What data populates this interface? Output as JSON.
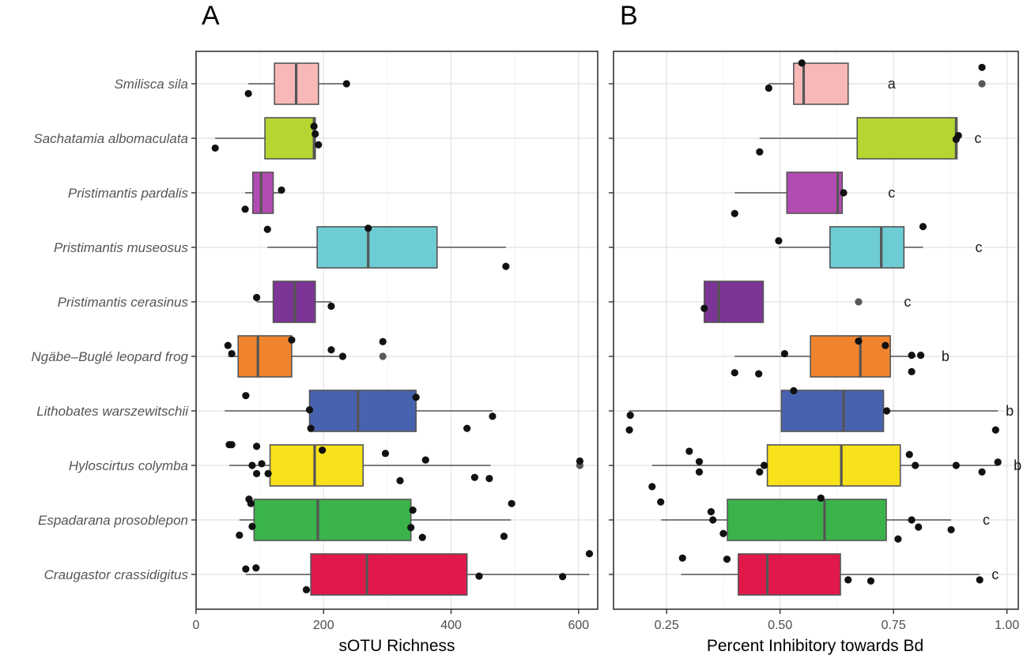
{
  "panel_labels": [
    "A",
    "B"
  ],
  "chart_data": [
    {
      "type": "boxplot",
      "panel": "A",
      "xlabel": "sOTU Richness",
      "xlim": [
        0,
        630
      ],
      "xticks": [
        0,
        200,
        400,
        600
      ],
      "xtick_labels": [
        "0",
        "200",
        "400",
        "600"
      ],
      "grid": true,
      "categories": [
        "Smilisca sila",
        "Sachatamia albomaculata",
        "Pristimantis pardalis",
        "Pristimantis museosus",
        "Pristimantis cerasinus",
        "Ngäbe–Buglé leopard frog",
        "Lithobates warszewitschii",
        "Hyloscirtus colymba",
        "Espadarana prosoblepon",
        "Craugastor crassidigitus"
      ],
      "colors": [
        "#F8B8B8",
        "#B5D630",
        "#B24BB2",
        "#6DCCD4",
        "#7C3596",
        "#F0842E",
        "#4763AF",
        "#F7E11B",
        "#3AB44A",
        "#E0194A"
      ],
      "boxes": [
        {
          "whisker_low": 82,
          "q1": 123,
          "median": 157,
          "q3": 192,
          "whisker_high": 236,
          "outliers": []
        },
        {
          "whisker_low": 30,
          "q1": 108,
          "median": 185,
          "q3": 187,
          "whisker_high": 187,
          "outliers": []
        },
        {
          "whisker_low": 77,
          "q1": 89,
          "median": 102,
          "q3": 121,
          "whisker_high": 134,
          "outliers": []
        },
        {
          "whisker_low": 112,
          "q1": 190,
          "median": 270,
          "q3": 378,
          "whisker_high": 486,
          "outliers": []
        },
        {
          "whisker_low": 95,
          "q1": 121,
          "median": 155,
          "q3": 187,
          "whisker_high": 212,
          "outliers": []
        },
        {
          "whisker_low": 50,
          "q1": 66,
          "median": 97,
          "q3": 150,
          "whisker_high": 230,
          "outliers": [
            293
          ]
        },
        {
          "whisker_low": 45,
          "q1": 178,
          "median": 254,
          "q3": 345,
          "whisker_high": 465,
          "outliers": []
        },
        {
          "whisker_low": 52,
          "q1": 116,
          "median": 186,
          "q3": 262,
          "whisker_high": 462,
          "outliers": [
            602
          ]
        },
        {
          "whisker_low": 68,
          "q1": 91,
          "median": 191,
          "q3": 337,
          "whisker_high": 494,
          "outliers": []
        },
        {
          "whisker_low": 78,
          "q1": 180,
          "median": 268,
          "q3": 425,
          "whisker_high": 617,
          "outliers": []
        }
      ],
      "points": [
        {
          "x": 236,
          "y": 0,
          "j": 0.0
        },
        {
          "x": 82,
          "y": 0,
          "j": 0.18
        },
        {
          "x": 185,
          "y": 1,
          "j": -0.22
        },
        {
          "x": 187,
          "y": 1,
          "j": -0.08
        },
        {
          "x": 192,
          "y": 1,
          "j": 0.12
        },
        {
          "x": 30,
          "y": 1,
          "j": 0.18
        },
        {
          "x": 134,
          "y": 2,
          "j": -0.05
        },
        {
          "x": 77,
          "y": 2,
          "j": 0.3
        },
        {
          "x": 270,
          "y": 3,
          "j": -0.35
        },
        {
          "x": 112,
          "y": 3,
          "j": -0.33
        },
        {
          "x": 486,
          "y": 3,
          "j": 0.35
        },
        {
          "x": 95,
          "y": 4,
          "j": -0.08
        },
        {
          "x": 212,
          "y": 4,
          "j": 0.08
        },
        {
          "x": 150,
          "y": 5,
          "j": -0.3
        },
        {
          "x": 293,
          "y": 5,
          "j": -0.27
        },
        {
          "x": 50,
          "y": 5,
          "j": -0.2
        },
        {
          "x": 212,
          "y": 5,
          "j": -0.12
        },
        {
          "x": 56,
          "y": 5,
          "j": -0.05
        },
        {
          "x": 230,
          "y": 5,
          "j": 0.0
        },
        {
          "x": 345,
          "y": 6,
          "j": -0.25
        },
        {
          "x": 78,
          "y": 6,
          "j": -0.28
        },
        {
          "x": 178,
          "y": 6,
          "j": -0.02
        },
        {
          "x": 465,
          "y": 6,
          "j": 0.1
        },
        {
          "x": 425,
          "y": 6,
          "j": 0.32
        },
        {
          "x": 180,
          "y": 6,
          "j": 0.32
        },
        {
          "x": 52,
          "y": 7,
          "j": -0.38
        },
        {
          "x": 56,
          "y": 7,
          "j": -0.38
        },
        {
          "x": 95,
          "y": 7,
          "j": -0.35
        },
        {
          "x": 198,
          "y": 7,
          "j": -0.28
        },
        {
          "x": 297,
          "y": 7,
          "j": -0.22
        },
        {
          "x": 360,
          "y": 7,
          "j": -0.1
        },
        {
          "x": 602,
          "y": 7,
          "j": -0.08
        },
        {
          "x": 103,
          "y": 7,
          "j": -0.03
        },
        {
          "x": 88,
          "y": 7,
          "j": 0.0
        },
        {
          "x": 95,
          "y": 7,
          "j": 0.15
        },
        {
          "x": 113,
          "y": 7,
          "j": 0.15
        },
        {
          "x": 437,
          "y": 7,
          "j": 0.22
        },
        {
          "x": 460,
          "y": 7,
          "j": 0.24
        },
        {
          "x": 320,
          "y": 7,
          "j": 0.28
        },
        {
          "x": 83,
          "y": 8,
          "j": -0.38
        },
        {
          "x": 86,
          "y": 8,
          "j": -0.3
        },
        {
          "x": 495,
          "y": 8,
          "j": -0.3
        },
        {
          "x": 340,
          "y": 8,
          "j": -0.18
        },
        {
          "x": 88,
          "y": 8,
          "j": 0.12
        },
        {
          "x": 337,
          "y": 8,
          "j": 0.14
        },
        {
          "x": 68,
          "y": 8,
          "j": 0.28
        },
        {
          "x": 483,
          "y": 8,
          "j": 0.3
        },
        {
          "x": 355,
          "y": 8,
          "j": 0.32
        },
        {
          "x": 617,
          "y": 9,
          "j": -0.38
        },
        {
          "x": 78,
          "y": 9,
          "j": -0.1
        },
        {
          "x": 94,
          "y": 9,
          "j": -0.12
        },
        {
          "x": 575,
          "y": 9,
          "j": 0.04
        },
        {
          "x": 444,
          "y": 9,
          "j": 0.03
        },
        {
          "x": 173,
          "y": 9,
          "j": 0.28
        }
      ]
    },
    {
      "type": "boxplot",
      "panel": "B",
      "xlabel": "Percent Inhibitory towards Bd",
      "xlim": [
        0.133,
        1.025
      ],
      "xticks": [
        0.25,
        0.5,
        0.75,
        1.0
      ],
      "xtick_labels": [
        "0.25",
        "0.50",
        "0.75",
        "1.00"
      ],
      "grid": true,
      "categories": [
        "Smilisca sila",
        "Sachatamia albomaculata",
        "Pristimantis pardalis",
        "Pristimantis museosus",
        "Pristimantis cerasinus",
        "Ngäbe–Buglé leopard frog",
        "Lithobates warszewitschii",
        "Hyloscirtus colymba",
        "Espadarana prosoblepon",
        "Craugastor crassidigitus"
      ],
      "colors": [
        "#F8B8B8",
        "#B5D630",
        "#B24BB2",
        "#6DCCD4",
        "#7C3596",
        "#F0842E",
        "#4763AF",
        "#F7E11B",
        "#3AB44A",
        "#E0194A"
      ],
      "letters": [
        "a",
        "c",
        "c",
        "c",
        "c",
        "b",
        "b",
        "b",
        "c",
        "c"
      ],
      "boxes": [
        {
          "whisker_low": 0.475,
          "q1": 0.53,
          "median": 0.552,
          "q3": 0.65,
          "whisker_high": 0.65,
          "outliers": [
            0.945
          ]
        },
        {
          "whisker_low": 0.455,
          "q1": 0.67,
          "median": 0.888,
          "q3": 0.89,
          "whisker_high": 0.89,
          "outliers": []
        },
        {
          "whisker_low": 0.4,
          "q1": 0.515,
          "median": 0.627,
          "q3": 0.637,
          "whisker_high": 0.637,
          "outliers": []
        },
        {
          "whisker_low": 0.497,
          "q1": 0.61,
          "median": 0.723,
          "q3": 0.773,
          "whisker_high": 0.815,
          "outliers": []
        },
        {
          "whisker_low": 0.333,
          "q1": 0.333,
          "median": 0.365,
          "q3": 0.463,
          "whisker_high": 0.463,
          "outliers": [
            0.673
          ]
        },
        {
          "whisker_low": 0.4,
          "q1": 0.567,
          "median": 0.677,
          "q3": 0.743,
          "whisker_high": 0.8,
          "outliers": []
        },
        {
          "whisker_low": 0.167,
          "q1": 0.503,
          "median": 0.64,
          "q3": 0.728,
          "whisker_high": 0.98,
          "outliers": []
        },
        {
          "whisker_low": 0.218,
          "q1": 0.472,
          "median": 0.635,
          "q3": 0.765,
          "whisker_high": 0.98,
          "outliers": []
        },
        {
          "whisker_low": 0.238,
          "q1": 0.384,
          "median": 0.598,
          "q3": 0.734,
          "whisker_high": 0.877,
          "outliers": []
        },
        {
          "whisker_low": 0.282,
          "q1": 0.408,
          "median": 0.472,
          "q3": 0.633,
          "whisker_high": 0.94,
          "outliers": []
        }
      ],
      "points": [
        {
          "x": 0.548,
          "y": 0,
          "j": -0.38
        },
        {
          "x": 0.945,
          "y": 0,
          "j": -0.3
        },
        {
          "x": 0.475,
          "y": 0,
          "j": 0.08
        },
        {
          "x": 0.893,
          "y": 1,
          "j": -0.05
        },
        {
          "x": 0.888,
          "y": 1,
          "j": 0.02
        },
        {
          "x": 0.455,
          "y": 1,
          "j": 0.25
        },
        {
          "x": 0.64,
          "y": 2,
          "j": 0.0
        },
        {
          "x": 0.4,
          "y": 2,
          "j": 0.38
        },
        {
          "x": 0.815,
          "y": 3,
          "j": -0.38
        },
        {
          "x": 0.497,
          "y": 3,
          "j": -0.12
        },
        {
          "x": 0.333,
          "y": 4,
          "j": 0.12
        },
        {
          "x": 0.673,
          "y": 5,
          "j": -0.28
        },
        {
          "x": 0.732,
          "y": 5,
          "j": -0.2
        },
        {
          "x": 0.51,
          "y": 5,
          "j": -0.05
        },
        {
          "x": 0.79,
          "y": 5,
          "j": -0.02
        },
        {
          "x": 0.81,
          "y": 5,
          "j": -0.02
        },
        {
          "x": 0.4,
          "y": 5,
          "j": 0.3
        },
        {
          "x": 0.453,
          "y": 5,
          "j": 0.32
        },
        {
          "x": 0.79,
          "y": 5,
          "j": 0.28
        },
        {
          "x": 0.53,
          "y": 6,
          "j": -0.37
        },
        {
          "x": 0.735,
          "y": 6,
          "j": 0.0
        },
        {
          "x": 0.17,
          "y": 6,
          "j": 0.08
        },
        {
          "x": 0.168,
          "y": 6,
          "j": 0.35
        },
        {
          "x": 0.975,
          "y": 6,
          "j": 0.35
        },
        {
          "x": 0.3,
          "y": 7,
          "j": -0.26
        },
        {
          "x": 0.785,
          "y": 7,
          "j": -0.2
        },
        {
          "x": 0.322,
          "y": 7,
          "j": -0.07
        },
        {
          "x": 0.465,
          "y": 7,
          "j": 0.0
        },
        {
          "x": 0.798,
          "y": 7,
          "j": 0.0
        },
        {
          "x": 0.888,
          "y": 7,
          "j": 0.0
        },
        {
          "x": 0.98,
          "y": 7,
          "j": -0.06
        },
        {
          "x": 0.322,
          "y": 7,
          "j": 0.12
        },
        {
          "x": 0.455,
          "y": 7,
          "j": 0.12
        },
        {
          "x": 0.945,
          "y": 7,
          "j": 0.12
        },
        {
          "x": 0.218,
          "y": 7,
          "j": 0.39
        },
        {
          "x": 0.237,
          "y": 8,
          "j": -0.33
        },
        {
          "x": 0.59,
          "y": 8,
          "j": -0.4
        },
        {
          "x": 0.348,
          "y": 8,
          "j": -0.15
        },
        {
          "x": 0.79,
          "y": 8,
          "j": 0.0
        },
        {
          "x": 0.352,
          "y": 8,
          "j": 0.0
        },
        {
          "x": 0.805,
          "y": 8,
          "j": 0.13
        },
        {
          "x": 0.877,
          "y": 8,
          "j": 0.18
        },
        {
          "x": 0.375,
          "y": 8,
          "j": 0.25
        },
        {
          "x": 0.76,
          "y": 8,
          "j": 0.35
        },
        {
          "x": 0.285,
          "y": 9,
          "j": -0.3
        },
        {
          "x": 0.383,
          "y": 9,
          "j": -0.28
        },
        {
          "x": 0.65,
          "y": 9,
          "j": 0.1
        },
        {
          "x": 0.7,
          "y": 9,
          "j": 0.12
        },
        {
          "x": 0.94,
          "y": 9,
          "j": 0.1
        }
      ]
    }
  ]
}
